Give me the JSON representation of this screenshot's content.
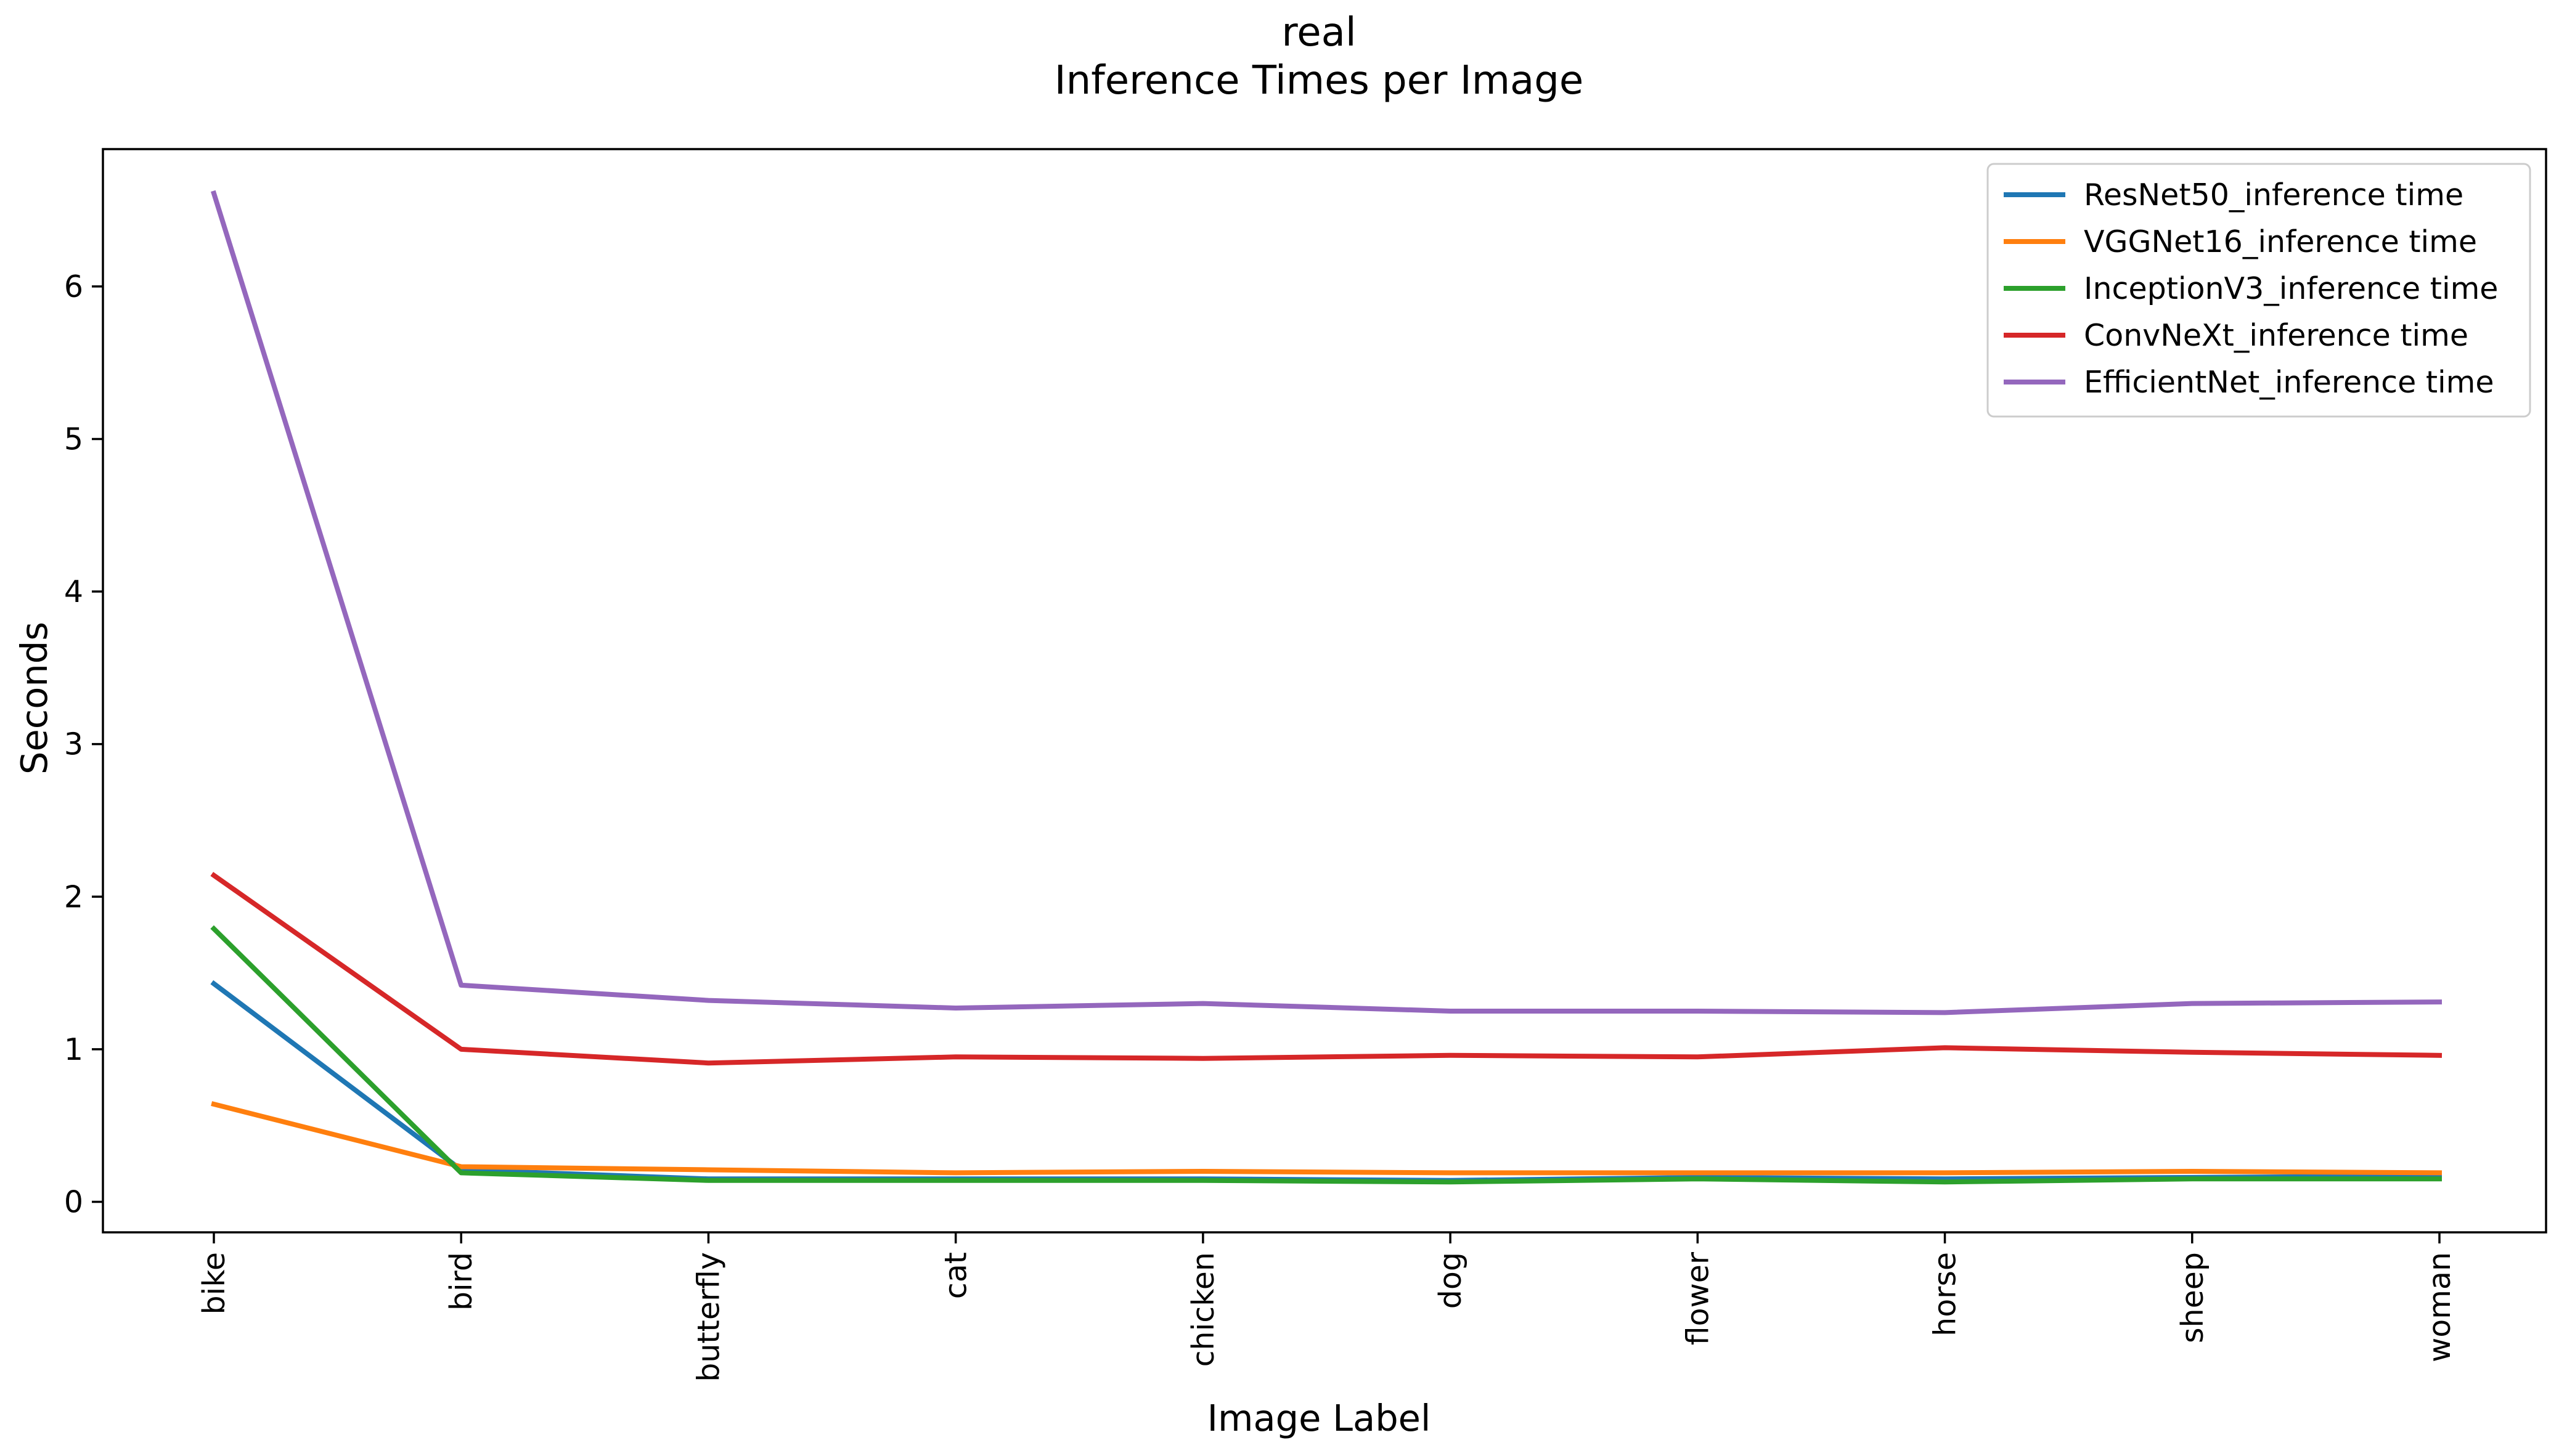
{
  "chart_data": {
    "type": "line",
    "title": "real",
    "subtitle": "Inference Times per Image",
    "xlabel": "Image Label",
    "ylabel": "Seconds",
    "categories": [
      "bike",
      "bird",
      "butterfly",
      "cat",
      "chicken",
      "dog",
      "flower",
      "horse",
      "sheep",
      "woman"
    ],
    "ylim": [
      -0.2,
      6.9
    ],
    "yticks": [
      0,
      1,
      2,
      3,
      4,
      5,
      6
    ],
    "grid": false,
    "legend_position": "top-right",
    "series": [
      {
        "name": "ResNet50_inference time",
        "color": "#1f77b4",
        "values": [
          1.43,
          0.21,
          0.15,
          0.15,
          0.15,
          0.14,
          0.16,
          0.15,
          0.16,
          0.17
        ]
      },
      {
        "name": "VGGNet16_inference time",
        "color": "#ff7f0e",
        "values": [
          0.64,
          0.23,
          0.21,
          0.19,
          0.2,
          0.19,
          0.19,
          0.19,
          0.2,
          0.19
        ]
      },
      {
        "name": "InceptionV3_inference time",
        "color": "#2ca02c",
        "values": [
          1.79,
          0.19,
          0.14,
          0.14,
          0.14,
          0.13,
          0.15,
          0.13,
          0.15,
          0.15
        ]
      },
      {
        "name": "ConvNeXt_inference time",
        "color": "#d62728",
        "values": [
          2.14,
          1.0,
          0.91,
          0.95,
          0.94,
          0.96,
          0.95,
          1.01,
          0.98,
          0.96
        ]
      },
      {
        "name": "EfficientNet_inference time",
        "color": "#9467bd",
        "values": [
          6.61,
          1.42,
          1.32,
          1.27,
          1.3,
          1.25,
          1.25,
          1.24,
          1.3,
          1.31
        ]
      }
    ]
  }
}
